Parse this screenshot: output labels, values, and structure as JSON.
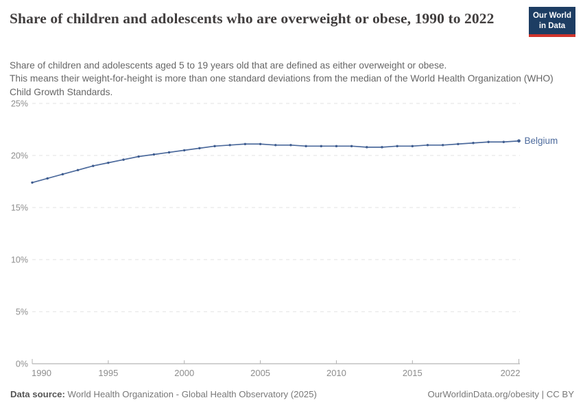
{
  "header": {
    "title": "Share of children and adolescents who are overweight or obese, 1990 to 2022",
    "subtitle_line1": "Share of children and adolescents aged 5 to 19 years old that are defined as either overweight or obese.",
    "subtitle_line2": "This means their weight-for-height is more than one standard deviations from the median of the World Health Organization (WHO) Child Growth Standards.",
    "logo_line1": "Our World",
    "logo_line2": "in Data"
  },
  "chart_data": {
    "type": "line",
    "title": "Share of children and adolescents who are overweight or obese, 1990 to 2022",
    "xlim": [
      1990,
      2022
    ],
    "ylim": [
      0,
      25
    ],
    "xticks": [
      1990,
      1995,
      2000,
      2005,
      2010,
      2015,
      2022
    ],
    "yticks": [
      0,
      5,
      10,
      15,
      20,
      25
    ],
    "ytick_suffix": "%",
    "grid": "horizontal-dashed",
    "legend_position": "line-end-label",
    "series": [
      {
        "name": "Belgium",
        "color": "#4c6a9c",
        "dot_color": "#3e5c8f",
        "x": [
          1990,
          1991,
          1992,
          1993,
          1994,
          1995,
          1996,
          1997,
          1998,
          1999,
          2000,
          2001,
          2002,
          2003,
          2004,
          2005,
          2006,
          2007,
          2008,
          2009,
          2010,
          2011,
          2012,
          2013,
          2014,
          2015,
          2016,
          2017,
          2018,
          2019,
          2020,
          2021,
          2022
        ],
        "values": [
          17.4,
          17.8,
          18.2,
          18.6,
          19.0,
          19.3,
          19.6,
          19.9,
          20.1,
          20.3,
          20.5,
          20.7,
          20.9,
          21.0,
          21.1,
          21.1,
          21.0,
          21.0,
          20.9,
          20.9,
          20.9,
          20.9,
          20.8,
          20.8,
          20.9,
          20.9,
          21.0,
          21.0,
          21.1,
          21.2,
          21.3,
          21.3,
          21.4
        ]
      }
    ],
    "style": {
      "gridline_color": "#e2e2e2",
      "axis_color": "#a3a3a3",
      "tick_color": "#b0b0b0"
    }
  },
  "footer": {
    "datasource_label": "Data source:",
    "datasource_text": " World Health Organization - Global Health Observatory (2025)",
    "license": "OurWorldinData.org/obesity | CC BY"
  }
}
